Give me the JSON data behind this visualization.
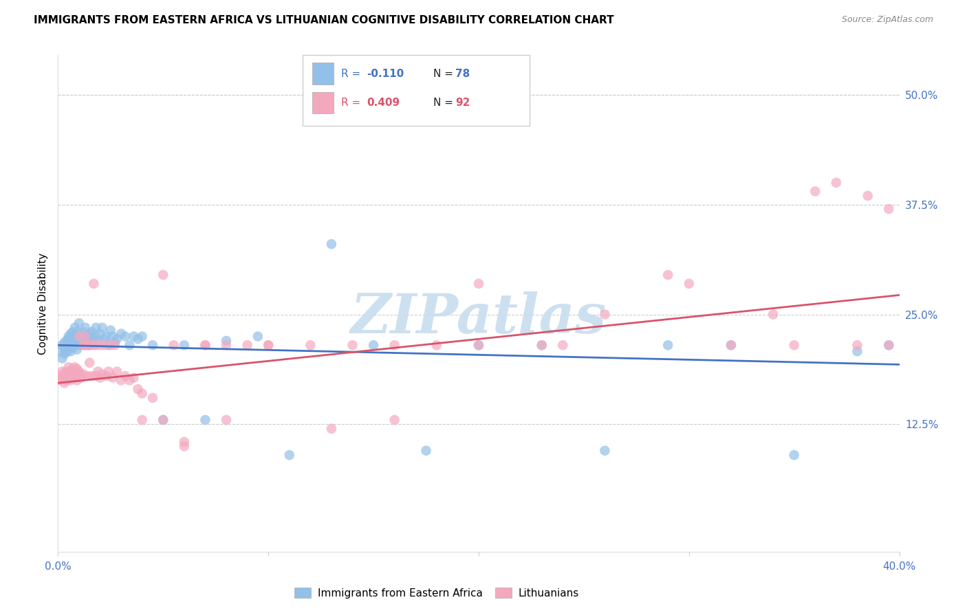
{
  "title": "IMMIGRANTS FROM EASTERN AFRICA VS LITHUANIAN COGNITIVE DISABILITY CORRELATION CHART",
  "source": "Source: ZipAtlas.com",
  "ylabel": "Cognitive Disability",
  "yticks": [
    "12.5%",
    "25.0%",
    "37.5%",
    "50.0%"
  ],
  "ytick_vals": [
    0.125,
    0.25,
    0.375,
    0.5
  ],
  "xlim": [
    0.0,
    0.4
  ],
  "ylim": [
    -0.02,
    0.545
  ],
  "blue_R": -0.11,
  "blue_N": 78,
  "pink_R": 0.409,
  "pink_N": 92,
  "blue_color": "#92C0E8",
  "pink_color": "#F4A8BE",
  "blue_line_color": "#4472C4",
  "pink_line_color": "#D9536A",
  "watermark": "ZIPatlas",
  "blue_x": [
    0.001,
    0.002,
    0.002,
    0.003,
    0.003,
    0.003,
    0.004,
    0.004,
    0.004,
    0.005,
    0.005,
    0.005,
    0.005,
    0.006,
    0.006,
    0.006,
    0.007,
    0.007,
    0.007,
    0.007,
    0.008,
    0.008,
    0.008,
    0.009,
    0.009,
    0.009,
    0.01,
    0.01,
    0.01,
    0.011,
    0.011,
    0.012,
    0.012,
    0.013,
    0.013,
    0.014,
    0.014,
    0.015,
    0.015,
    0.016,
    0.016,
    0.017,
    0.018,
    0.018,
    0.019,
    0.02,
    0.021,
    0.022,
    0.023,
    0.024,
    0.025,
    0.026,
    0.027,
    0.028,
    0.03,
    0.032,
    0.034,
    0.036,
    0.038,
    0.04,
    0.045,
    0.05,
    0.06,
    0.07,
    0.08,
    0.095,
    0.11,
    0.13,
    0.15,
    0.175,
    0.2,
    0.23,
    0.26,
    0.29,
    0.32,
    0.35,
    0.38,
    0.395
  ],
  "blue_y": [
    0.208,
    0.2,
    0.215,
    0.205,
    0.218,
    0.212,
    0.207,
    0.22,
    0.213,
    0.215,
    0.222,
    0.21,
    0.225,
    0.218,
    0.208,
    0.228,
    0.215,
    0.222,
    0.23,
    0.212,
    0.235,
    0.218,
    0.222,
    0.21,
    0.225,
    0.23,
    0.215,
    0.22,
    0.24,
    0.218,
    0.225,
    0.215,
    0.23,
    0.222,
    0.235,
    0.218,
    0.225,
    0.215,
    0.228,
    0.222,
    0.23,
    0.218,
    0.235,
    0.225,
    0.22,
    0.228,
    0.235,
    0.222,
    0.225,
    0.215,
    0.232,
    0.225,
    0.218,
    0.222,
    0.228,
    0.225,
    0.215,
    0.225,
    0.222,
    0.225,
    0.215,
    0.13,
    0.215,
    0.13,
    0.22,
    0.225,
    0.09,
    0.33,
    0.215,
    0.095,
    0.215,
    0.215,
    0.095,
    0.215,
    0.215,
    0.09,
    0.208,
    0.215
  ],
  "pink_x": [
    0.001,
    0.001,
    0.002,
    0.002,
    0.003,
    0.003,
    0.003,
    0.004,
    0.004,
    0.005,
    0.005,
    0.005,
    0.006,
    0.006,
    0.007,
    0.007,
    0.007,
    0.008,
    0.008,
    0.008,
    0.009,
    0.009,
    0.01,
    0.01,
    0.01,
    0.011,
    0.012,
    0.012,
    0.013,
    0.013,
    0.014,
    0.014,
    0.015,
    0.015,
    0.016,
    0.017,
    0.017,
    0.018,
    0.018,
    0.019,
    0.02,
    0.02,
    0.021,
    0.022,
    0.023,
    0.024,
    0.025,
    0.026,
    0.027,
    0.028,
    0.03,
    0.032,
    0.034,
    0.036,
    0.038,
    0.04,
    0.045,
    0.05,
    0.055,
    0.06,
    0.07,
    0.08,
    0.09,
    0.1,
    0.12,
    0.14,
    0.16,
    0.18,
    0.2,
    0.23,
    0.26,
    0.29,
    0.32,
    0.35,
    0.36,
    0.37,
    0.385,
    0.395,
    0.04,
    0.05,
    0.06,
    0.07,
    0.08,
    0.1,
    0.13,
    0.16,
    0.2,
    0.24,
    0.3,
    0.34,
    0.38,
    0.395
  ],
  "pink_y": [
    0.175,
    0.18,
    0.178,
    0.185,
    0.172,
    0.18,
    0.183,
    0.175,
    0.185,
    0.178,
    0.182,
    0.19,
    0.175,
    0.185,
    0.18,
    0.188,
    0.178,
    0.182,
    0.19,
    0.178,
    0.175,
    0.188,
    0.182,
    0.185,
    0.225,
    0.178,
    0.182,
    0.215,
    0.225,
    0.215,
    0.18,
    0.215,
    0.195,
    0.215,
    0.18,
    0.285,
    0.215,
    0.215,
    0.18,
    0.185,
    0.178,
    0.215,
    0.182,
    0.215,
    0.18,
    0.185,
    0.215,
    0.178,
    0.215,
    0.185,
    0.175,
    0.18,
    0.175,
    0.178,
    0.165,
    0.16,
    0.155,
    0.13,
    0.215,
    0.1,
    0.215,
    0.13,
    0.215,
    0.215,
    0.215,
    0.215,
    0.215,
    0.215,
    0.285,
    0.215,
    0.25,
    0.295,
    0.215,
    0.215,
    0.39,
    0.4,
    0.385,
    0.37,
    0.13,
    0.295,
    0.105,
    0.215,
    0.215,
    0.215,
    0.12,
    0.13,
    0.215,
    0.215,
    0.285,
    0.25,
    0.215,
    0.215
  ]
}
